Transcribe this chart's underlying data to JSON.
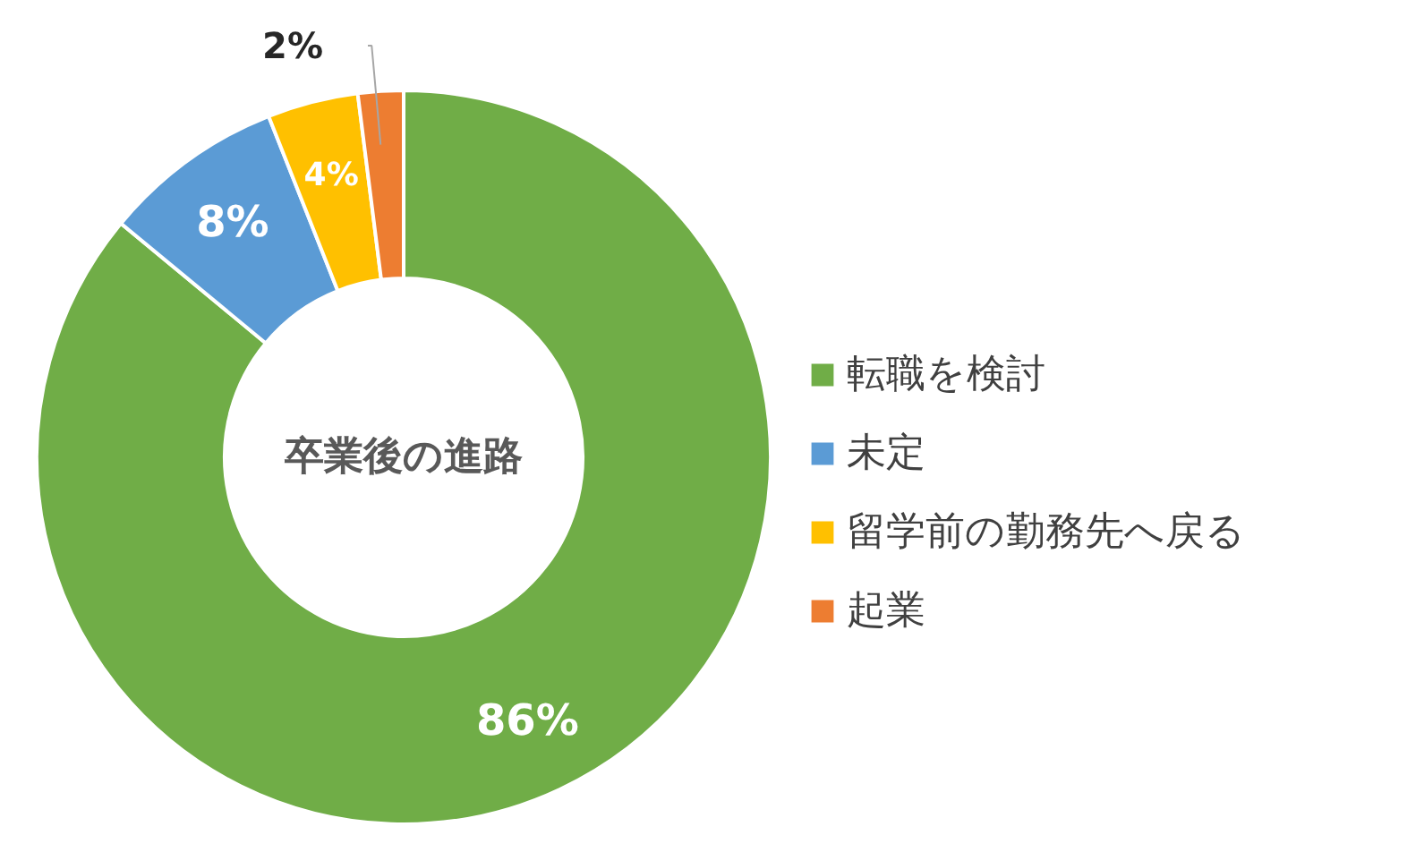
{
  "chart_data": {
    "type": "donut",
    "title": "卒業後の進路",
    "categories": [
      "転職を検討",
      "未定",
      "留学前の勤務先へ戻る",
      "起業"
    ],
    "values": [
      86,
      8,
      4,
      2
    ],
    "colors": [
      "#70ad47",
      "#5b9bd5",
      "#ffc000",
      "#ed7d31"
    ],
    "value_labels": [
      "86%",
      "8%",
      "4%",
      "2%"
    ],
    "legend": "right"
  }
}
